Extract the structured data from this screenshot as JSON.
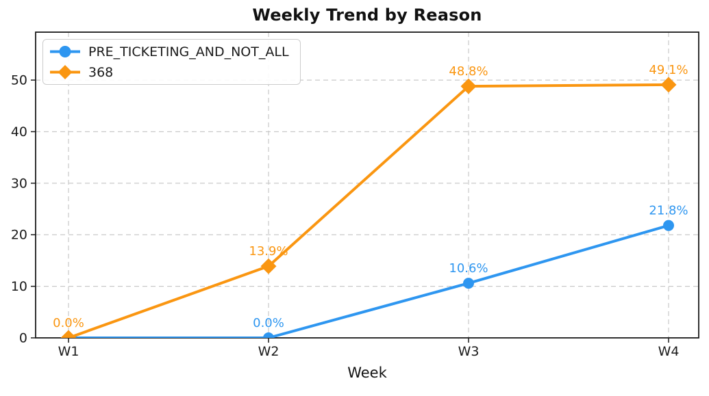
{
  "chart_data": {
    "type": "line",
    "title": "Weekly Trend by Reason",
    "xlabel": "Week",
    "ylabel": "",
    "categories": [
      "W1",
      "W2",
      "W3",
      "W4"
    ],
    "yticks": [
      0,
      10,
      20,
      30,
      40,
      50
    ],
    "ylim": [
      0,
      59.3
    ],
    "grid": true,
    "grid_style": "dashed",
    "legend_position": "upper-left",
    "series": [
      {
        "name": "PRE_TICKETING_AND_NOT_ALL",
        "color": "#2E96F0",
        "marker": "circle",
        "values": [
          0.0,
          0.0,
          10.6,
          21.8
        ],
        "point_labels": [
          "",
          "0.0%",
          "10.6%",
          "21.8%"
        ]
      },
      {
        "name": "368",
        "color": "#FA9611",
        "marker": "diamond",
        "values": [
          0.0,
          13.9,
          48.8,
          49.1
        ],
        "point_labels": [
          "0.0%",
          "13.9%",
          "48.8%",
          "49.1%"
        ]
      }
    ],
    "colors": {
      "background": "#ffffff",
      "axis": "#1a1a1a",
      "grid": "#c9c9c9",
      "tick_label": "#1a1a1a",
      "legend_border": "#cccccc"
    }
  }
}
